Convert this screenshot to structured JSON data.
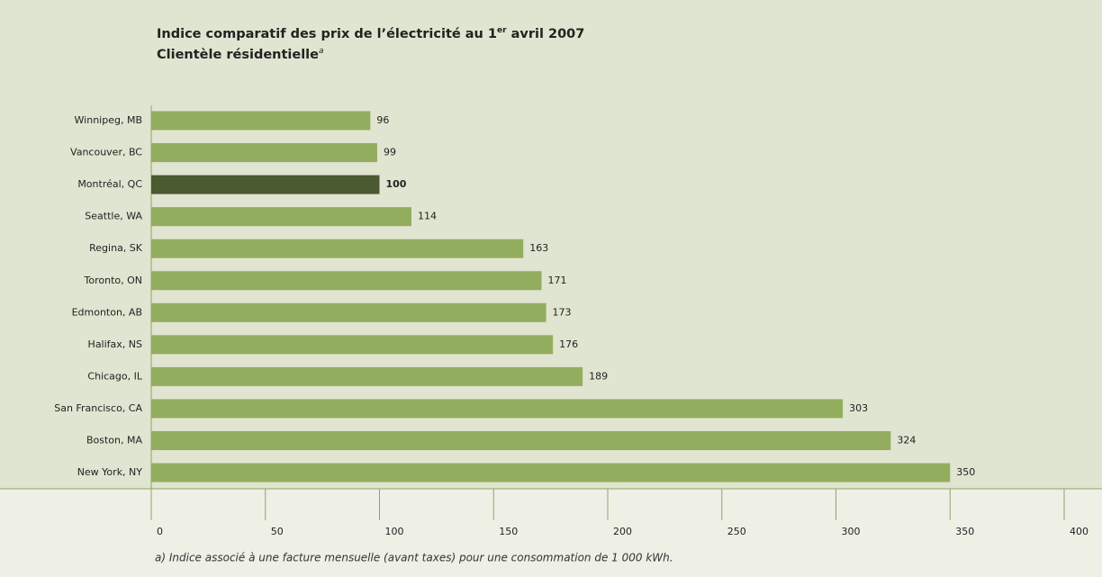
{
  "chart_data": {
    "type": "bar",
    "orientation": "horizontal",
    "title": [
      "Indice comparatif des prix de l’électricité au 1",
      "er",
      " avril 2007"
    ],
    "subtitle": [
      "Clientèle résidentielle",
      "a"
    ],
    "categories": [
      "Winnipeg, MB",
      "Vancouver, BC",
      "Montréal, QC",
      "Seattle, WA",
      "Regina, SK",
      "Toronto, ON",
      "Edmonton, AB",
      "Halifax, NS",
      "Chicago, IL",
      "San Francisco, CA",
      "Boston, MA",
      "New York, NY"
    ],
    "values": [
      96,
      99,
      100,
      114,
      163,
      171,
      173,
      176,
      189,
      303,
      324,
      350
    ],
    "colors": [
      "#93ad5e",
      "#93ad5e",
      "#4b5a31",
      "#93ad5e",
      "#93ad5e",
      "#93ad5e",
      "#93ad5e",
      "#93ad5e",
      "#93ad5e",
      "#93ad5e",
      "#93ad5e",
      "#93ad5e"
    ],
    "xlim": [
      0,
      400
    ],
    "xticks": [
      0,
      50,
      100,
      150,
      200,
      250,
      300,
      350,
      400
    ],
    "footnote": "a)  Indice associé à une facture mensuelle (avant taxes) pour une consommation de 1 000 kWh."
  }
}
